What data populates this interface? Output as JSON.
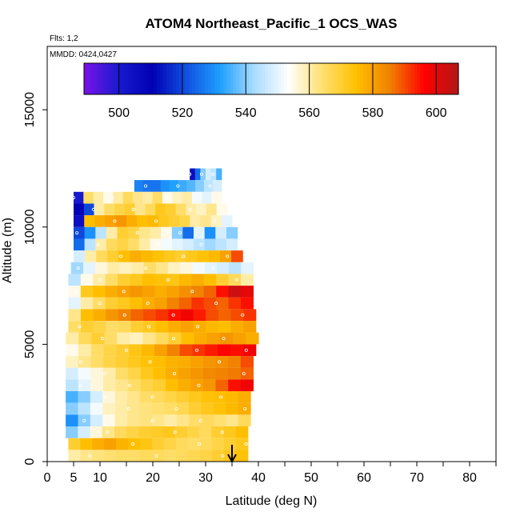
{
  "chart_data": {
    "type": "heatmap",
    "title": "ATOM4 Northeast_Pacific_1 OCS_WAS",
    "flights_label": "Flts: 1,2",
    "date_label": "MMDD: 0424,0427",
    "xlabel": "Latitude (deg N)",
    "ylabel": "Altitude (m)",
    "xlim": [
      0,
      85
    ],
    "ylim": [
      0,
      17700
    ],
    "x_ticks": [
      0,
      5,
      10,
      20,
      30,
      40,
      50,
      60,
      70,
      80
    ],
    "x_minor_ticks": [
      0,
      5,
      10,
      15,
      20,
      25,
      30,
      35,
      40,
      45,
      50,
      55,
      60,
      65,
      70,
      75,
      80,
      85
    ],
    "y_ticks": [
      0,
      5000,
      10000,
      15000
    ],
    "colorbar": {
      "min": 489,
      "max": 607,
      "ticks": [
        500,
        520,
        540,
        560,
        580,
        600
      ],
      "divisions": [
        500,
        520,
        540,
        560,
        580,
        600
      ],
      "colors": [
        "#7a12e6",
        "#1a1ad0",
        "#0000b4",
        "#1050e0",
        "#1f9fff",
        "#a9dcff",
        "#ffffff",
        "#ffe070",
        "#ffc000",
        "#f08000",
        "#ff0000",
        "#b01818"
      ]
    },
    "arrow_marker": {
      "latitude": 35,
      "label": ""
    },
    "bands": [
      {
        "alt_min": 12000,
        "alt_max": 12500,
        "lat_min": 27,
        "lat_max": 33,
        "values": [
          505,
          525,
          540,
          548,
          545,
          535
        ]
      },
      {
        "alt_min": 11500,
        "alt_max": 12000,
        "lat_min": 16.5,
        "lat_max": 33,
        "values": [
          528,
          526,
          526,
          530,
          532,
          534,
          536,
          540,
          545,
          548
        ]
      },
      {
        "alt_min": 11000,
        "alt_max": 11500,
        "lat_min": 5,
        "lat_max": 33,
        "values": [
          500,
          565,
          560,
          555,
          560,
          566,
          562,
          560,
          565,
          555,
          558,
          560,
          552,
          550,
          555
        ]
      },
      {
        "alt_min": 10500,
        "alt_max": 11000,
        "lat_min": 5,
        "lat_max": 34,
        "values": [
          510,
          520,
          560,
          565,
          568,
          570,
          562,
          566,
          572,
          570,
          565,
          560,
          558,
          562,
          555
        ]
      },
      {
        "alt_min": 10000,
        "alt_max": 10500,
        "lat_min": 5,
        "lat_max": 35,
        "values": [
          505,
          575,
          578,
          580,
          582,
          578,
          575,
          576,
          572,
          570,
          568,
          560,
          562,
          558,
          550
        ]
      },
      {
        "alt_min": 9500,
        "alt_max": 10000,
        "lat_min": 5,
        "lat_max": 36,
        "values": [
          520,
          530,
          545,
          560,
          570,
          568,
          562,
          560,
          555,
          540,
          525,
          550,
          530,
          548,
          540
        ]
      },
      {
        "alt_min": 9000,
        "alt_max": 9500,
        "lat_min": 5,
        "lat_max": 36,
        "values": [
          525,
          545,
          560,
          566,
          568,
          565,
          560,
          555,
          552,
          550,
          548,
          545,
          542,
          545,
          548
        ]
      },
      {
        "alt_min": 8500,
        "alt_max": 9000,
        "lat_min": 5,
        "lat_max": 37,
        "values": [
          548,
          560,
          566,
          570,
          575,
          578,
          576,
          574,
          572,
          570,
          572,
          574,
          576,
          580,
          590
        ]
      },
      {
        "alt_min": 8000,
        "alt_max": 8500,
        "lat_min": 4.5,
        "lat_max": 39,
        "values": [
          542,
          550,
          556,
          560,
          558,
          560,
          565,
          562,
          558,
          556,
          552,
          550,
          548,
          545,
          550
        ]
      },
      {
        "alt_min": 7500,
        "alt_max": 8000,
        "lat_min": 4,
        "lat_max": 39,
        "values": [
          545,
          555,
          560,
          565,
          570,
          572,
          575,
          574,
          573,
          576,
          578,
          575,
          570,
          566,
          560
        ]
      },
      {
        "alt_min": 7000,
        "alt_max": 7500,
        "lat_min": 4,
        "lat_max": 39,
        "values": [
          555,
          572,
          575,
          578,
          580,
          582,
          580,
          578,
          580,
          583,
          585,
          588,
          595,
          603,
          600
        ]
      },
      {
        "alt_min": 6500,
        "alt_max": 7000,
        "lat_min": 4,
        "lat_max": 39,
        "values": [
          550,
          560,
          565,
          570,
          572,
          575,
          578,
          580,
          585,
          588,
          592,
          590,
          588,
          592,
          595
        ]
      },
      {
        "alt_min": 6000,
        "alt_max": 6500,
        "lat_min": 4,
        "lat_max": 39.5,
        "values": [
          562,
          575,
          578,
          582,
          585,
          588,
          590,
          592,
          595,
          598,
          594,
          590,
          588,
          590,
          592
        ]
      },
      {
        "alt_min": 5500,
        "alt_max": 6000,
        "lat_min": 4,
        "lat_max": 39.5,
        "values": [
          565,
          570,
          568,
          565,
          566,
          570,
          572,
          575,
          578,
          580,
          578,
          576,
          575,
          578,
          580
        ]
      },
      {
        "alt_min": 5000,
        "alt_max": 5500,
        "lat_min": 3.5,
        "lat_max": 40,
        "values": [
          560,
          566,
          570,
          565,
          560,
          558,
          562,
          566,
          570,
          575,
          578,
          580,
          582,
          580,
          578
        ]
      },
      {
        "alt_min": 4500,
        "alt_max": 5000,
        "lat_min": 3.5,
        "lat_max": 39.5,
        "values": [
          555,
          560,
          565,
          568,
          570,
          573,
          576,
          580,
          585,
          590,
          592,
          594,
          596,
          595,
          598
        ]
      },
      {
        "alt_min": 4000,
        "alt_max": 4500,
        "lat_min": 3.5,
        "lat_max": 39,
        "values": [
          558,
          562,
          565,
          568,
          570,
          572,
          574,
          575,
          577,
          578,
          580,
          582,
          583,
          585,
          590
        ]
      },
      {
        "alt_min": 3500,
        "alt_max": 4000,
        "lat_min": 3.5,
        "lat_max": 39,
        "values": [
          548,
          552,
          556,
          560,
          565,
          568,
          572,
          575,
          578,
          580,
          582,
          584,
          585,
          586,
          588
        ]
      },
      {
        "alt_min": 3000,
        "alt_max": 3500,
        "lat_min": 3.5,
        "lat_max": 39,
        "values": [
          545,
          550,
          556,
          560,
          562,
          565,
          568,
          570,
          575,
          578,
          580,
          582,
          588,
          595,
          598
        ]
      },
      {
        "alt_min": 2500,
        "alt_max": 3000,
        "lat_min": 3.5,
        "lat_max": 38.5,
        "values": [
          535,
          540,
          548,
          556,
          560,
          562,
          565,
          566,
          568,
          570,
          572,
          574,
          575,
          576,
          578
        ]
      },
      {
        "alt_min": 2000,
        "alt_max": 2500,
        "lat_min": 3.5,
        "lat_max": 38.5,
        "values": [
          540,
          545,
          552,
          558,
          560,
          562,
          563,
          564,
          565,
          567,
          570,
          572,
          574,
          576,
          578
        ]
      },
      {
        "alt_min": 1500,
        "alt_max": 2000,
        "lat_min": 3.5,
        "lat_max": 38.5,
        "values": [
          530,
          540,
          548,
          555,
          560,
          562,
          563,
          562,
          560,
          562,
          565,
          566,
          564,
          562,
          566
        ]
      },
      {
        "alt_min": 1000,
        "alt_max": 1500,
        "lat_min": 3.5,
        "lat_max": 38,
        "values": [
          540,
          548,
          556,
          562,
          566,
          568,
          570,
          571,
          572,
          570,
          568,
          566,
          570,
          572,
          575
        ]
      },
      {
        "alt_min": 500,
        "alt_max": 1000,
        "lat_min": 4,
        "lat_max": 38,
        "values": [
          570,
          575,
          578,
          580,
          577,
          575,
          573,
          570,
          568,
          566,
          565,
          566,
          568,
          570,
          572
        ]
      },
      {
        "alt_min": 0,
        "alt_max": 500,
        "lat_min": 4,
        "lat_max": 38,
        "values": [
          560,
          562,
          563,
          564,
          565,
          565,
          566,
          566,
          565,
          566,
          567,
          568,
          570,
          572,
          574
        ]
      }
    ]
  }
}
